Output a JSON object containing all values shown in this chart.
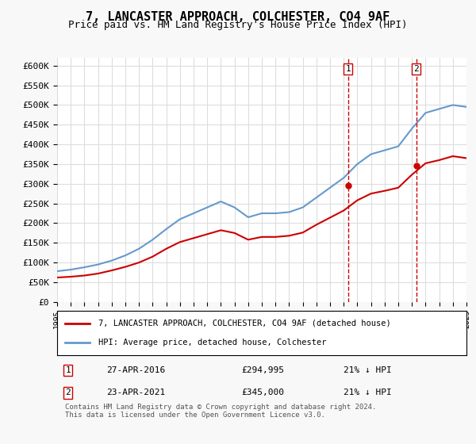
{
  "title": "7, LANCASTER APPROACH, COLCHESTER, CO4 9AF",
  "subtitle": "Price paid vs. HM Land Registry's House Price Index (HPI)",
  "ylabel_ticks": [
    "£0",
    "£50K",
    "£100K",
    "£150K",
    "£200K",
    "£250K",
    "£300K",
    "£350K",
    "£400K",
    "£450K",
    "£500K",
    "£550K",
    "£600K"
  ],
  "ytick_values": [
    0,
    50000,
    100000,
    150000,
    200000,
    250000,
    300000,
    350000,
    400000,
    450000,
    500000,
    550000,
    600000
  ],
  "years_hpi": [
    1995,
    1996,
    1997,
    1998,
    1999,
    2000,
    2001,
    2002,
    2003,
    2004,
    2005,
    2006,
    2007,
    2008,
    2009,
    2010,
    2011,
    2012,
    2013,
    2014,
    2015,
    2016,
    2017,
    2018,
    2019,
    2020,
    2021,
    2022,
    2023,
    2024,
    2025
  ],
  "hpi_values": [
    78000,
    82000,
    88000,
    95000,
    105000,
    118000,
    135000,
    158000,
    185000,
    210000,
    225000,
    240000,
    255000,
    240000,
    215000,
    225000,
    225000,
    228000,
    240000,
    265000,
    290000,
    315000,
    350000,
    375000,
    385000,
    395000,
    440000,
    480000,
    490000,
    500000,
    495000
  ],
  "years_price": [
    1995,
    1996,
    1997,
    1998,
    1999,
    2000,
    2001,
    2002,
    2003,
    2004,
    2005,
    2006,
    2007,
    2008,
    2009,
    2010,
    2011,
    2012,
    2013,
    2014,
    2015,
    2016,
    2017,
    2018,
    2019,
    2020,
    2021,
    2022,
    2023,
    2024,
    2025
  ],
  "price_values": [
    62000,
    64000,
    67000,
    72000,
    80000,
    89000,
    100000,
    115000,
    135000,
    152000,
    162000,
    172000,
    182000,
    175000,
    158000,
    165000,
    165000,
    168000,
    176000,
    196000,
    214000,
    232000,
    258000,
    275000,
    282000,
    290000,
    323000,
    352000,
    360000,
    370000,
    365000
  ],
  "purchase1_year": 2016.32,
  "purchase1_price": 294995,
  "purchase1_label": "1",
  "purchase1_date": "27-APR-2016",
  "purchase1_amount": "£294,995",
  "purchase1_hpi_diff": "21% ↓ HPI",
  "purchase2_year": 2021.32,
  "purchase2_price": 345000,
  "purchase2_label": "2",
  "purchase2_date": "23-APR-2021",
  "purchase2_amount": "£345,000",
  "purchase2_hpi_diff": "21% ↓ HPI",
  "legend_line1": "7, LANCASTER APPROACH, COLCHESTER, CO4 9AF (detached house)",
  "legend_line2": "HPI: Average price, detached house, Colchester",
  "footer": "Contains HM Land Registry data © Crown copyright and database right 2024.\nThis data is licensed under the Open Government Licence v3.0.",
  "line_color_red": "#cc0000",
  "line_color_blue": "#6699cc",
  "bg_color": "#f8f8f8",
  "plot_bg": "#ffffff",
  "grid_color": "#dddddd",
  "xmin": 1995,
  "xmax": 2025,
  "ymin": 0,
  "ymax": 620000
}
